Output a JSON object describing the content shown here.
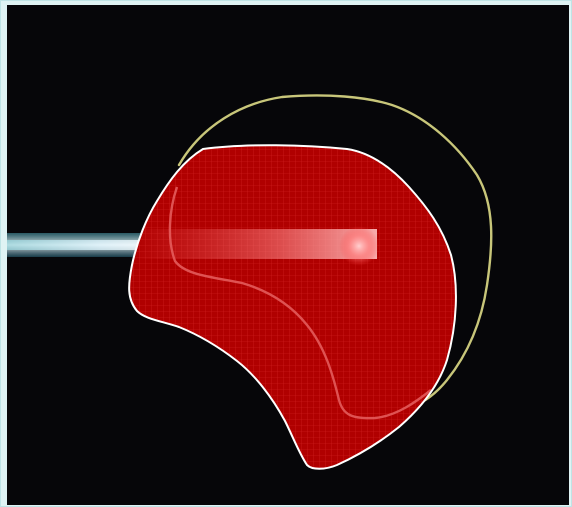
{
  "image": {
    "background_color": "#060609",
    "outer_border_color": "#dff3f4"
  },
  "overlay": {
    "region_color": "#b00000",
    "region_outline_color": "#ffffff",
    "grid_color": "#e03030",
    "contour_color": "#c8c67a",
    "inner_contour_color": "#e05050"
  },
  "beam": {
    "color_core": "#d8ffff",
    "color_tip": "#ffb0b0"
  },
  "corner": {
    "label": "",
    "color": "#6a4cff"
  }
}
